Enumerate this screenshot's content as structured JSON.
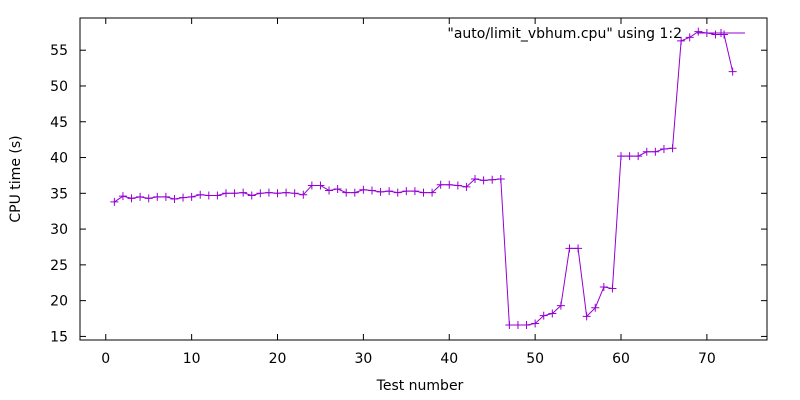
{
  "chart_data": {
    "type": "line",
    "title": "",
    "xlabel": "Test number",
    "ylabel": "CPU time (s)",
    "xlim": [
      -3,
      77
    ],
    "ylim": [
      14.5,
      59.5
    ],
    "xticks": [
      0,
      10,
      20,
      30,
      40,
      50,
      60,
      70
    ],
    "yticks": [
      15,
      20,
      25,
      30,
      35,
      40,
      45,
      50,
      55
    ],
    "grid": false,
    "legend_position": "top-right",
    "series": [
      {
        "name": "\"auto/limit_vbhum.cpu\" using 1:2",
        "color": "#9400d3",
        "marker": "plus",
        "x": [
          1,
          2,
          3,
          4,
          5,
          6,
          7,
          8,
          9,
          10,
          11,
          12,
          13,
          14,
          15,
          16,
          17,
          18,
          19,
          20,
          21,
          22,
          23,
          24,
          25,
          26,
          27,
          28,
          29,
          30,
          31,
          32,
          33,
          34,
          35,
          36,
          37,
          38,
          39,
          40,
          41,
          42,
          43,
          44,
          45,
          46,
          47,
          48,
          49,
          50,
          51,
          52,
          53,
          54,
          55,
          56,
          57,
          58,
          59,
          60,
          61,
          62,
          63,
          64,
          65,
          66,
          67,
          68,
          69,
          70,
          71,
          72,
          73
        ],
        "values": [
          33.8,
          34.6,
          34.3,
          34.5,
          34.3,
          34.5,
          34.5,
          34.2,
          34.4,
          34.5,
          34.8,
          34.7,
          34.7,
          35.0,
          35.0,
          35.1,
          34.7,
          35.0,
          35.1,
          35.0,
          35.1,
          35.0,
          34.8,
          36.1,
          36.1,
          35.4,
          35.6,
          35.1,
          35.1,
          35.5,
          35.4,
          35.2,
          35.3,
          35.1,
          35.3,
          35.3,
          35.1,
          35.1,
          36.2,
          36.2,
          36.1,
          35.9,
          37.0,
          36.8,
          36.9,
          37.0,
          16.6,
          16.6,
          16.6,
          16.8,
          17.9,
          18.2,
          19.3,
          27.3,
          27.3,
          17.8,
          19.0,
          21.9,
          21.7,
          40.2,
          40.2,
          40.2,
          40.8,
          40.8,
          41.2,
          41.3,
          56.3,
          56.8,
          57.6,
          57.4,
          57.2,
          57.2,
          52.0
        ]
      }
    ]
  }
}
